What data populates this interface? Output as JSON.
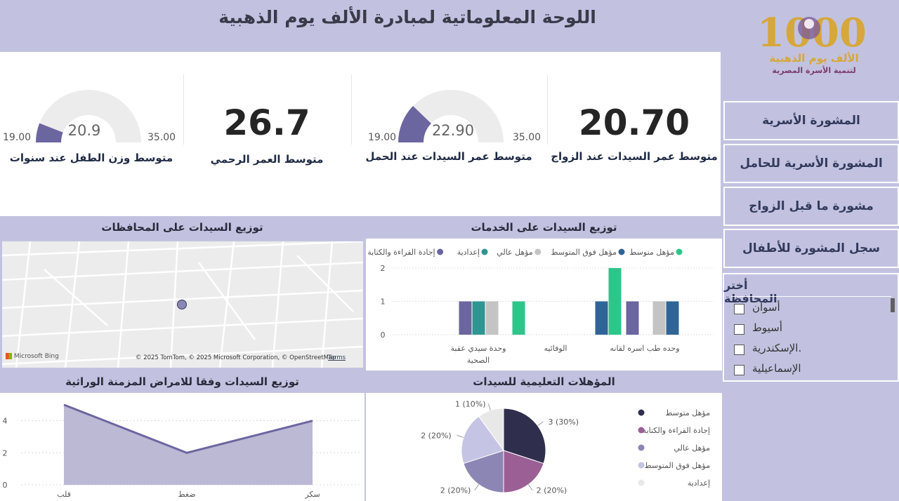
{
  "header": {
    "title": "اللوحة المعلوماتية لمبادرة الألف يوم الذهبية"
  },
  "logo": {
    "number": "1000",
    "line1": "الألف يوم الذهبية",
    "line2": "لتنمية الأسرة المصرية"
  },
  "kpis": [
    {
      "label": "متوسط عمر السيدات عند الزواج",
      "value": "20.70",
      "type": "card"
    },
    {
      "label": "متوسط عمر السيدات عند الحمل",
      "value": "22.90",
      "min": "19.00",
      "max": "35.00",
      "type": "gauge",
      "fraction": 0.244
    },
    {
      "label": "متوسط العمر الرحمي",
      "value": "26.7",
      "type": "card"
    },
    {
      "label": "متوسط وزن الطفل عند  سنوات",
      "value": "20.9",
      "min": "19.00",
      "max": "35.00",
      "type": "gauge",
      "fraction": 0.119
    }
  ],
  "sections": {
    "services": "توزيع السيدات على الخدمات",
    "governorates": "توزيع السيدات على المحافظات",
    "education": "المؤهلات التعليمية للسيدات",
    "chronic": "توزيع السيدات وفقا للامراض المزمنة الوراثية"
  },
  "map": {
    "bing": "Microsoft Bing",
    "copyright": "© 2025 TomTom, © 2025 Microsoft Corporation, © OpenStreetMap",
    "terms": "Terms"
  },
  "nav": [
    "المشورة الأسرية",
    "المشورة الأسرية للحامل",
    "مشورة ما قبل الزواج",
    "سجل المشورة للأطفال"
  ],
  "slicer": {
    "title": "أختر المحافظة",
    "items": [
      "أسوان",
      "أسيوط",
      "الإسكندرية.",
      "الإسماعيلية"
    ]
  },
  "colors": {
    "bg": "#c2c2e0",
    "accent": "#6b66a0"
  },
  "chart_data": [
    {
      "type": "bar",
      "title": "توزيع السيدات على الخدمات",
      "categories": [
        "وحدة سيدي عقبة الصحية",
        "الوفائيه",
        "وحده طب اسره لقانه"
      ],
      "series": [
        {
          "name": "مؤهل متوسط",
          "color": "#2ec58a",
          "values": [
            1,
            2,
            0
          ]
        },
        {
          "name": "مؤهل فوق المتوسط",
          "color": "#2f6497",
          "values": [
            0,
            1,
            1
          ]
        },
        {
          "name": "مؤهل عالي",
          "color": "#c4c4c4",
          "values": [
            1,
            0,
            1
          ]
        },
        {
          "name": "إعدادية",
          "color": "#2f9592",
          "values": [
            1,
            0,
            0
          ]
        },
        {
          "name": "إجادة القراءة والكتابة",
          "color": "#6b66a0",
          "values": [
            1,
            0,
            1
          ]
        }
      ],
      "ylim": [
        0,
        2
      ],
      "yticks": [
        0,
        1,
        2
      ],
      "legend": "top"
    },
    {
      "type": "pie",
      "title": "المؤهلات التعليمية للسيدات",
      "slices": [
        {
          "name": "مؤهل متوسط",
          "value": 3,
          "label": "3 (30%)",
          "color": "#2f2f4d"
        },
        {
          "name": "إجادة القراءة والكتابة",
          "value": 2,
          "label": "2 (20%)",
          "color": "#9b5f95"
        },
        {
          "name": "مؤهل عالي",
          "value": 2,
          "label": "2 (20%)",
          "color": "#8c86b4"
        },
        {
          "name": "مؤهل فوق المتوسط",
          "value": 2,
          "label": "2 (20%)",
          "color": "#c6c4e4"
        },
        {
          "name": "إعدادية",
          "value": 1,
          "label": "1 (10%)",
          "color": "#e8e8e8"
        }
      ],
      "legend": "right"
    },
    {
      "type": "area",
      "title": "توزيع السيدات وفقا للامراض المزمنة الوراثية",
      "categories": [
        "قلب",
        "ضغط",
        "سكر"
      ],
      "values": [
        5,
        2,
        4
      ],
      "ylim": [
        0,
        5.3
      ],
      "yticks": [
        0,
        2,
        4
      ],
      "grid": true
    }
  ]
}
